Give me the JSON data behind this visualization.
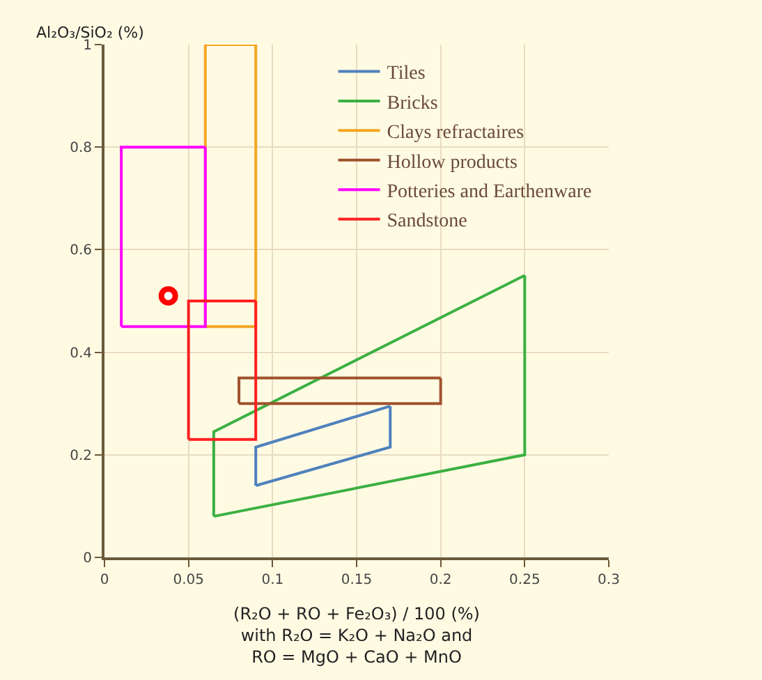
{
  "chart_data": {
    "type": "line",
    "xlabel": "(R₂O + RO + Fe₂O₃) / 100 (%)\nwith R₂O = K₂O + Na₂O and\nRO = MgO + CaO + MnO",
    "ylabel": "Al₂O₃/SiO₂ (%)",
    "xlim": [
      0,
      0.3
    ],
    "ylim": [
      0,
      1
    ],
    "xticks": [
      0,
      0.05,
      0.1,
      0.15,
      0.2,
      0.25,
      0.3
    ],
    "yticks": [
      0,
      0.2,
      0.4,
      0.6,
      0.8,
      1
    ],
    "grid": true,
    "legend": "top right",
    "marker": "none",
    "line_style": "solid",
    "series": [
      {
        "name": "Tiles",
        "color": "#4f81bd",
        "x": [
          0.09,
          0.09,
          0.17,
          0.17,
          0.09
        ],
        "values": [
          0.14,
          0.215,
          0.295,
          0.215,
          0.14
        ]
      },
      {
        "name": "Bricks",
        "color": "#3cb043",
        "x": [
          0.065,
          0.065,
          0.25,
          0.25,
          0.065
        ],
        "values": [
          0.08,
          0.245,
          0.55,
          0.2,
          0.08
        ]
      },
      {
        "name": "Clays refractaires",
        "color": "#f5a623",
        "x": [
          0.06,
          0.06,
          0.09,
          0.09,
          0.06
        ],
        "values": [
          0.45,
          1,
          1,
          0.45,
          0.45
        ]
      },
      {
        "name": "Hollow products",
        "color": "#a0522d",
        "x": [
          0.08,
          0.08,
          0.2,
          0.2,
          0.08
        ],
        "values": [
          0.3,
          0.35,
          0.35,
          0.3,
          0.3
        ]
      },
      {
        "name": "Potteries and Earthenware",
        "color": "#ff00ff",
        "x": [
          0.01,
          0.01,
          0.06,
          0.06,
          0.01
        ],
        "values": [
          0.45,
          0.8,
          0.8,
          0.45,
          0.45
        ]
      },
      {
        "name": "Sandstone",
        "color": "#ff2020",
        "x": [
          0.05,
          0.05,
          0.09,
          0.09,
          0.05
        ],
        "values": [
          0.23,
          0.5,
          0.5,
          0.23,
          0.23
        ]
      },
      {
        "type": "scatter",
        "marker": "circle",
        "color": "#ff0000",
        "x": [
          0.038
        ],
        "values": [
          0.51
        ]
      }
    ]
  }
}
